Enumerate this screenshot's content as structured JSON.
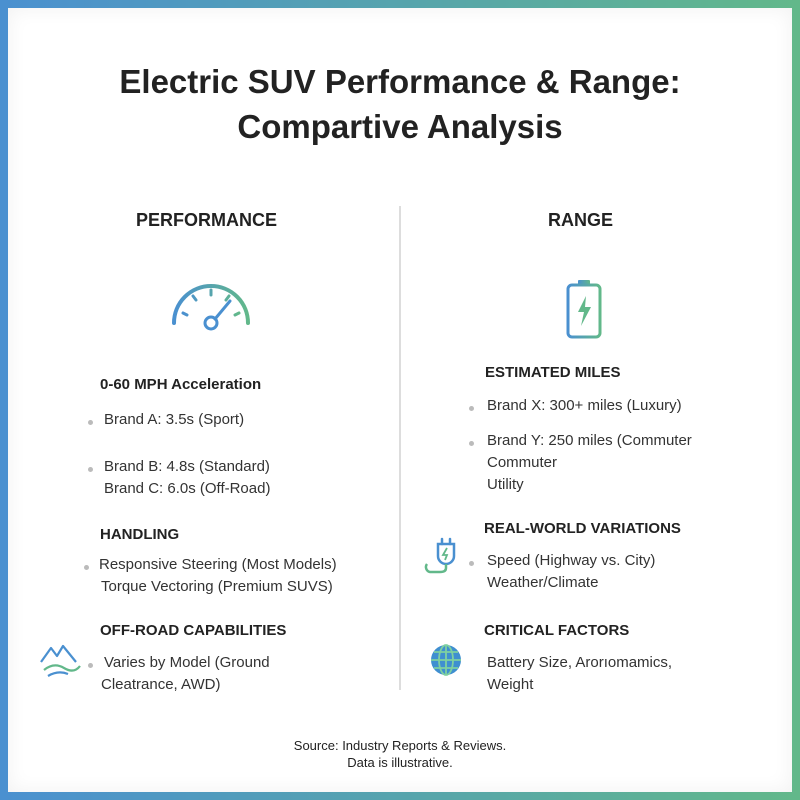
{
  "header": {
    "title_lines": [
      "Electric SUV Performance & Range:",
      "Compartive Analysis"
    ]
  },
  "columns": [
    {
      "heading": "PERFORMANCE",
      "sections": [
        {
          "title": "0-60 MPH Acceleration",
          "items": [
            [
              "Brand A: 3.5s (Sport)"
            ],
            [
              "Brand B: 4.8s (Standard)",
              "Brand C: 6.0s (Off-Road)"
            ]
          ]
        },
        {
          "title": "HANDLING",
          "items": [
            [
              "Responsive Steering (Most Models)",
              "Torque Vectoring (Premium SUVS)"
            ]
          ]
        },
        {
          "title": "OFF-ROAD CAPABILITIES",
          "items": [
            [
              "Varies by Model (Ground",
              "Cleatrance, AWD)"
            ]
          ]
        }
      ]
    },
    {
      "heading": "RANGE",
      "sections": [
        {
          "title": "ESTIMATED MILES",
          "items": [
            [
              "Brand X: 300+ miles (Luxury)"
            ],
            [
              "Brand Y: 250 miles (Commuter",
              "Commuter",
              "Utility"
            ]
          ]
        },
        {
          "title": "REAL-WORLD VARIATIONS",
          "items": [
            [
              "Speed (Highway vs. City)",
              "Weather/Climate"
            ]
          ]
        },
        {
          "title": "CRITICAL FACTORS",
          "items": [
            [
              "Battery Size, Arorıomamics,",
              "Weight"
            ]
          ]
        }
      ]
    }
  ],
  "footer": {
    "lines": [
      "Source: Industry Reports & Reviews.",
      "Data is illustrative."
    ]
  }
}
